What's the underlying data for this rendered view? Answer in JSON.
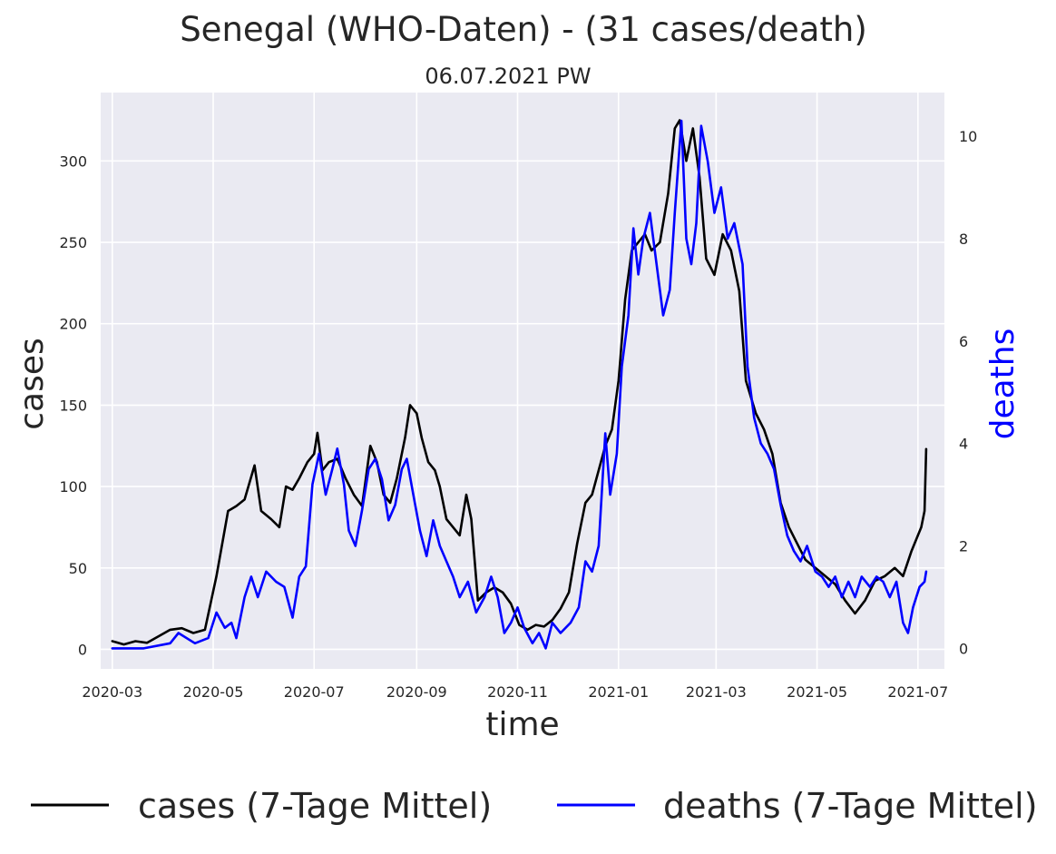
{
  "chart_data": {
    "type": "line",
    "title": "Senegal (WHO-Daten) - (31 cases/death)",
    "subtitle": "06.07.2021 PW",
    "xlabel": "time",
    "ylabel_left": "cases",
    "ylabel_right": "deaths",
    "x_range": [
      "2020-02-23",
      "2021-07-17"
    ],
    "x_ticks": [
      "2020-03",
      "2020-05",
      "2020-07",
      "2020-09",
      "2020-11",
      "2021-01",
      "2021-03",
      "2021-05",
      "2021-07"
    ],
    "ylim_left": [
      -12,
      342
    ],
    "y_ticks_left": [
      0,
      50,
      100,
      150,
      200,
      250,
      300
    ],
    "ylim_right": [
      -0.4,
      10.85
    ],
    "y_ticks_right": [
      0,
      2,
      4,
      6,
      8,
      10
    ],
    "grid": true,
    "legend_position": "bottom",
    "series": [
      {
        "name": "cases (7-Tage Mittel)",
        "color": "#000000",
        "axis": "left",
        "points": [
          [
            "2020-03-01",
            5
          ],
          [
            "2020-03-08",
            3
          ],
          [
            "2020-03-15",
            5
          ],
          [
            "2020-03-22",
            4
          ],
          [
            "2020-03-29",
            8
          ],
          [
            "2020-04-05",
            12
          ],
          [
            "2020-04-12",
            13
          ],
          [
            "2020-04-19",
            10
          ],
          [
            "2020-04-26",
            12
          ],
          [
            "2020-05-03",
            45
          ],
          [
            "2020-05-10",
            85
          ],
          [
            "2020-05-15",
            88
          ],
          [
            "2020-05-20",
            92
          ],
          [
            "2020-05-26",
            113
          ],
          [
            "2020-05-30",
            85
          ],
          [
            "2020-06-05",
            80
          ],
          [
            "2020-06-10",
            75
          ],
          [
            "2020-06-14",
            100
          ],
          [
            "2020-06-18",
            98
          ],
          [
            "2020-06-22",
            105
          ],
          [
            "2020-06-27",
            115
          ],
          [
            "2020-07-01",
            120
          ],
          [
            "2020-07-03",
            133
          ],
          [
            "2020-07-06",
            110
          ],
          [
            "2020-07-10",
            115
          ],
          [
            "2020-07-15",
            117
          ],
          [
            "2020-07-20",
            105
          ],
          [
            "2020-07-25",
            95
          ],
          [
            "2020-07-30",
            88
          ],
          [
            "2020-08-04",
            125
          ],
          [
            "2020-08-08",
            115
          ],
          [
            "2020-08-12",
            95
          ],
          [
            "2020-08-16",
            90
          ],
          [
            "2020-08-20",
            105
          ],
          [
            "2020-08-25",
            130
          ],
          [
            "2020-08-28",
            150
          ],
          [
            "2020-09-01",
            145
          ],
          [
            "2020-09-04",
            130
          ],
          [
            "2020-09-08",
            115
          ],
          [
            "2020-09-12",
            110
          ],
          [
            "2020-09-15",
            100
          ],
          [
            "2020-09-19",
            80
          ],
          [
            "2020-09-23",
            75
          ],
          [
            "2020-09-27",
            70
          ],
          [
            "2020-10-01",
            95
          ],
          [
            "2020-10-04",
            80
          ],
          [
            "2020-10-08",
            30
          ],
          [
            "2020-10-13",
            35
          ],
          [
            "2020-10-18",
            38
          ],
          [
            "2020-10-23",
            35
          ],
          [
            "2020-10-28",
            28
          ],
          [
            "2020-11-02",
            15
          ],
          [
            "2020-11-07",
            12
          ],
          [
            "2020-11-12",
            15
          ],
          [
            "2020-11-17",
            14
          ],
          [
            "2020-11-22",
            18
          ],
          [
            "2020-11-27",
            25
          ],
          [
            "2020-12-02",
            35
          ],
          [
            "2020-12-07",
            65
          ],
          [
            "2020-12-12",
            90
          ],
          [
            "2020-12-16",
            95
          ],
          [
            "2020-12-20",
            110
          ],
          [
            "2020-12-24",
            125
          ],
          [
            "2020-12-28",
            135
          ],
          [
            "2021-01-01",
            165
          ],
          [
            "2021-01-05",
            215
          ],
          [
            "2021-01-09",
            245
          ],
          [
            "2021-01-13",
            250
          ],
          [
            "2021-01-17",
            255
          ],
          [
            "2021-01-21",
            245
          ],
          [
            "2021-01-26",
            250
          ],
          [
            "2021-01-31",
            280
          ],
          [
            "2021-02-04",
            320
          ],
          [
            "2021-02-07",
            325
          ],
          [
            "2021-02-11",
            300
          ],
          [
            "2021-02-15",
            320
          ],
          [
            "2021-02-19",
            290
          ],
          [
            "2021-02-23",
            240
          ],
          [
            "2021-02-28",
            230
          ],
          [
            "2021-03-05",
            255
          ],
          [
            "2021-03-10",
            245
          ],
          [
            "2021-03-15",
            220
          ],
          [
            "2021-03-19",
            165
          ],
          [
            "2021-03-25",
            145
          ],
          [
            "2021-03-30",
            135
          ],
          [
            "2021-04-04",
            120
          ],
          [
            "2021-04-09",
            90
          ],
          [
            "2021-04-14",
            75
          ],
          [
            "2021-04-19",
            65
          ],
          [
            "2021-04-24",
            55
          ],
          [
            "2021-04-30",
            50
          ],
          [
            "2021-05-06",
            45
          ],
          [
            "2021-05-12",
            40
          ],
          [
            "2021-05-18",
            30
          ],
          [
            "2021-05-24",
            22
          ],
          [
            "2021-05-30",
            30
          ],
          [
            "2021-06-05",
            42
          ],
          [
            "2021-06-11",
            45
          ],
          [
            "2021-06-17",
            50
          ],
          [
            "2021-06-22",
            45
          ],
          [
            "2021-06-27",
            60
          ],
          [
            "2021-07-01",
            70
          ],
          [
            "2021-07-03",
            75
          ],
          [
            "2021-07-05",
            85
          ],
          [
            "2021-07-06",
            123
          ]
        ]
      },
      {
        "name": "deaths (7-Tage Mittel)",
        "color": "#0000ff",
        "axis": "right",
        "points": [
          [
            "2020-03-01",
            0
          ],
          [
            "2020-03-20",
            0
          ],
          [
            "2020-04-05",
            0.1
          ],
          [
            "2020-04-10",
            0.3
          ],
          [
            "2020-04-20",
            0.1
          ],
          [
            "2020-04-28",
            0.2
          ],
          [
            "2020-05-03",
            0.7
          ],
          [
            "2020-05-08",
            0.4
          ],
          [
            "2020-05-12",
            0.5
          ],
          [
            "2020-05-15",
            0.2
          ],
          [
            "2020-05-20",
            1.0
          ],
          [
            "2020-05-24",
            1.4
          ],
          [
            "2020-05-28",
            1.0
          ],
          [
            "2020-06-02",
            1.5
          ],
          [
            "2020-06-08",
            1.3
          ],
          [
            "2020-06-13",
            1.2
          ],
          [
            "2020-06-18",
            0.6
          ],
          [
            "2020-06-22",
            1.4
          ],
          [
            "2020-06-26",
            1.6
          ],
          [
            "2020-06-30",
            3.2
          ],
          [
            "2020-07-04",
            3.8
          ],
          [
            "2020-07-08",
            3.0
          ],
          [
            "2020-07-12",
            3.5
          ],
          [
            "2020-07-15",
            3.9
          ],
          [
            "2020-07-19",
            3.2
          ],
          [
            "2020-07-22",
            2.3
          ],
          [
            "2020-07-26",
            2.0
          ],
          [
            "2020-07-30",
            2.7
          ],
          [
            "2020-08-03",
            3.5
          ],
          [
            "2020-08-07",
            3.7
          ],
          [
            "2020-08-11",
            3.3
          ],
          [
            "2020-08-15",
            2.5
          ],
          [
            "2020-08-19",
            2.8
          ],
          [
            "2020-08-23",
            3.5
          ],
          [
            "2020-08-26",
            3.7
          ],
          [
            "2020-08-30",
            3.0
          ],
          [
            "2020-09-03",
            2.3
          ],
          [
            "2020-09-07",
            1.8
          ],
          [
            "2020-09-11",
            2.5
          ],
          [
            "2020-09-15",
            2.0
          ],
          [
            "2020-09-19",
            1.7
          ],
          [
            "2020-09-23",
            1.4
          ],
          [
            "2020-09-27",
            1.0
          ],
          [
            "2020-10-02",
            1.3
          ],
          [
            "2020-10-07",
            0.7
          ],
          [
            "2020-10-12",
            1.0
          ],
          [
            "2020-10-16",
            1.4
          ],
          [
            "2020-10-20",
            1.0
          ],
          [
            "2020-10-24",
            0.3
          ],
          [
            "2020-10-28",
            0.5
          ],
          [
            "2020-11-01",
            0.8
          ],
          [
            "2020-11-05",
            0.4
          ],
          [
            "2020-11-10",
            0.1
          ],
          [
            "2020-11-14",
            0.3
          ],
          [
            "2020-11-18",
            0.0
          ],
          [
            "2020-11-22",
            0.5
          ],
          [
            "2020-11-27",
            0.3
          ],
          [
            "2020-12-03",
            0.5
          ],
          [
            "2020-12-08",
            0.8
          ],
          [
            "2020-12-12",
            1.7
          ],
          [
            "2020-12-16",
            1.5
          ],
          [
            "2020-12-20",
            2.0
          ],
          [
            "2020-12-24",
            4.2
          ],
          [
            "2020-12-27",
            3.0
          ],
          [
            "2020-12-31",
            3.8
          ],
          [
            "2021-01-03",
            5.5
          ],
          [
            "2021-01-07",
            6.5
          ],
          [
            "2021-01-10",
            8.2
          ],
          [
            "2021-01-13",
            7.3
          ],
          [
            "2021-01-16",
            8.0
          ],
          [
            "2021-01-20",
            8.5
          ],
          [
            "2021-01-24",
            7.5
          ],
          [
            "2021-01-28",
            6.5
          ],
          [
            "2021-02-01",
            7.0
          ],
          [
            "2021-02-04",
            8.5
          ],
          [
            "2021-02-08",
            10.3
          ],
          [
            "2021-02-11",
            8.0
          ],
          [
            "2021-02-14",
            7.5
          ],
          [
            "2021-02-17",
            8.3
          ],
          [
            "2021-02-20",
            10.2
          ],
          [
            "2021-02-24",
            9.5
          ],
          [
            "2021-02-28",
            8.5
          ],
          [
            "2021-03-04",
            9.0
          ],
          [
            "2021-03-08",
            8.0
          ],
          [
            "2021-03-12",
            8.3
          ],
          [
            "2021-03-17",
            7.5
          ],
          [
            "2021-03-20",
            5.5
          ],
          [
            "2021-03-24",
            4.5
          ],
          [
            "2021-03-28",
            4.0
          ],
          [
            "2021-04-01",
            3.8
          ],
          [
            "2021-04-05",
            3.5
          ],
          [
            "2021-04-09",
            2.8
          ],
          [
            "2021-04-13",
            2.2
          ],
          [
            "2021-04-17",
            1.9
          ],
          [
            "2021-04-21",
            1.7
          ],
          [
            "2021-04-25",
            2.0
          ],
          [
            "2021-04-30",
            1.5
          ],
          [
            "2021-05-04",
            1.4
          ],
          [
            "2021-05-08",
            1.2
          ],
          [
            "2021-05-12",
            1.4
          ],
          [
            "2021-05-16",
            1.0
          ],
          [
            "2021-05-20",
            1.3
          ],
          [
            "2021-05-24",
            1.0
          ],
          [
            "2021-05-28",
            1.4
          ],
          [
            "2021-06-02",
            1.2
          ],
          [
            "2021-06-06",
            1.4
          ],
          [
            "2021-06-10",
            1.3
          ],
          [
            "2021-06-14",
            1.0
          ],
          [
            "2021-06-18",
            1.3
          ],
          [
            "2021-06-22",
            0.5
          ],
          [
            "2021-06-25",
            0.3
          ],
          [
            "2021-06-28",
            0.8
          ],
          [
            "2021-07-02",
            1.2
          ],
          [
            "2021-07-05",
            1.3
          ],
          [
            "2021-07-06",
            1.5
          ]
        ]
      }
    ]
  }
}
